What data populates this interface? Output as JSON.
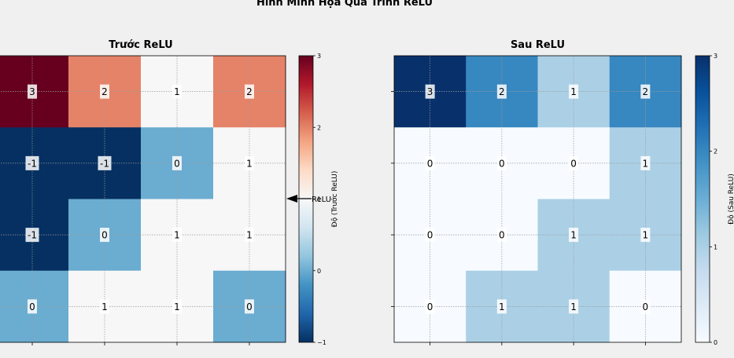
{
  "figure": {
    "title": "Hình Minh Họa Quá Trình ReLU",
    "annotation_label": "ReLU"
  },
  "colors": {
    "background": "#f0f0f0",
    "cmap": [
      "#053061",
      "#2166ac",
      "#4393c3",
      "#92c5de",
      "#d1e5f0",
      "#f7f7f7",
      "#fddbc7",
      "#f4a582",
      "#d6604d",
      "#b2182b",
      "#67001f"
    ],
    "blues": [
      "#f7fbff",
      "#deebf7",
      "#c6dbef",
      "#9ecae1",
      "#6baed6",
      "#4292c6",
      "#2171b5",
      "#08519c",
      "#08306b"
    ]
  },
  "chart_data": [
    {
      "type": "heatmap",
      "title": "Trước ReLU",
      "colorbar_label": "Độ (Trước ReLU)",
      "colormap": "RdBu_r",
      "vmin": -1,
      "vmax": 3,
      "colorbar_ticks": [
        -1,
        0,
        1,
        2,
        3
      ],
      "grid": true,
      "values": [
        [
          3,
          2,
          1,
          2
        ],
        [
          -1,
          -1,
          0,
          1
        ],
        [
          -1,
          0,
          1,
          1
        ],
        [
          0,
          1,
          1,
          0
        ]
      ]
    },
    {
      "type": "heatmap",
      "title": "Sau ReLU",
      "colorbar_label": "Độ (Sau ReLU)",
      "colormap": "Blues",
      "vmin": 0,
      "vmax": 3,
      "colorbar_ticks": [
        0,
        1,
        2,
        3
      ],
      "grid": true,
      "values": [
        [
          3,
          2,
          1,
          2
        ],
        [
          0,
          0,
          0,
          1
        ],
        [
          0,
          0,
          1,
          1
        ],
        [
          0,
          1,
          1,
          0
        ]
      ]
    }
  ]
}
